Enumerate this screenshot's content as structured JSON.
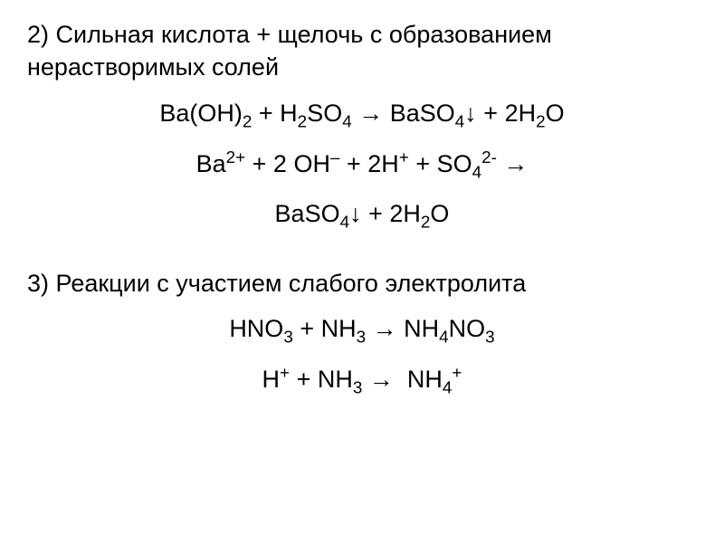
{
  "section2": {
    "heading": "2) Сильная кислота + щелочь с образованием нерастворимых солей",
    "eq1": "Ba(OH)₂ + H₂SO₄ → BaSO₄↓ + 2H₂O",
    "eq2_line1": "Ba²⁺ + 2 OH⁻ + 2H⁺ + SO₄²⁻ →",
    "eq2_line2": "BaSO₄↓ + 2H₂O"
  },
  "section3": {
    "heading": "3) Реакции с участием слабого электролита",
    "eq1": "HNO₃ + NH₃ → NH₄NO₃",
    "eq2": "H⁺ + NH₃ → NH₄⁺"
  },
  "colors": {
    "background": "#ffffff",
    "text": "#000000"
  },
  "typography": {
    "font_family": "Arial, sans-serif",
    "heading_fontsize": 27,
    "equation_fontsize": 27
  }
}
